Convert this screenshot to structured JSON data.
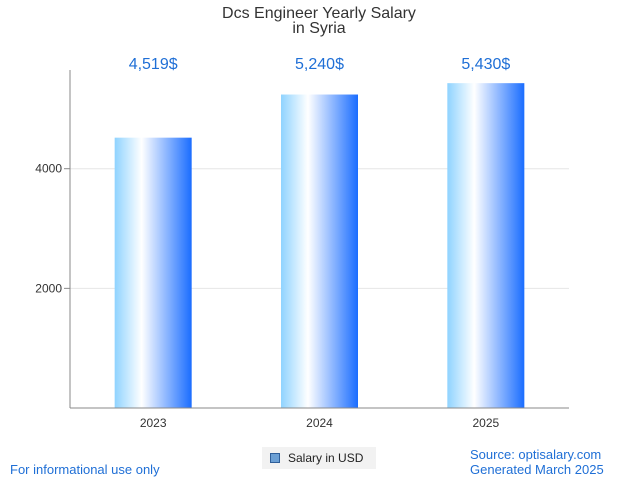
{
  "chart_data": {
    "type": "bar",
    "title": [
      "Dcs Engineer Yearly Salary",
      "in Syria"
    ],
    "categories": [
      "2023",
      "2024",
      "2025"
    ],
    "series": [
      {
        "name": "Salary in USD",
        "values": [
          4519,
          5240,
          5430
        ]
      }
    ],
    "value_labels": [
      "4,519$",
      "5,240$",
      "5,430$"
    ],
    "y_ticks": [
      2000,
      4000
    ],
    "ylim": [
      0,
      5650
    ],
    "gridlines": true,
    "legend_position": "bottom-center",
    "colors": {
      "bar_light": "#ffffff",
      "bar_mid": "#8fd3ff",
      "bar_dark": "#1a6dff",
      "label": "#1f6fd6",
      "grid": "#e6e6e6",
      "axis": "#888888"
    }
  },
  "legend": {
    "label": "Salary in USD"
  },
  "footer": {
    "disclaimer": "For informational use only",
    "source": "Source: optisalary.com",
    "generated": "Generated March 2025"
  }
}
